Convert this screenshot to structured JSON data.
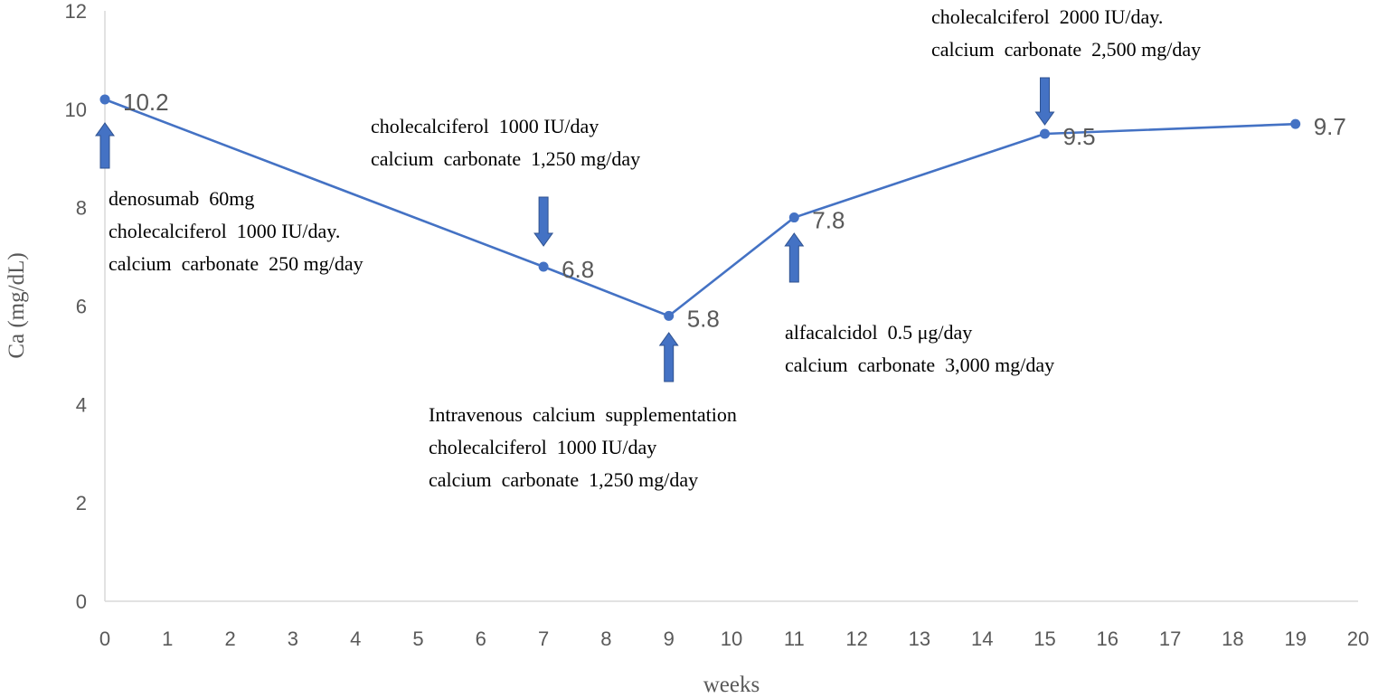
{
  "chart_data": {
    "type": "line",
    "title": "",
    "xlabel": "weeks",
    "ylabel": "Ca (mg/dL)",
    "xlim": [
      0,
      20
    ],
    "ylim": [
      0,
      12
    ],
    "x_ticks": [
      "0",
      "1",
      "2",
      "3",
      "4",
      "5",
      "6",
      "7",
      "8",
      "9",
      "10",
      "11",
      "12",
      "13",
      "14",
      "15",
      "16",
      "17",
      "18",
      "19",
      "20"
    ],
    "y_ticks": [
      "0",
      "2",
      "4",
      "6",
      "8",
      "10",
      "12"
    ],
    "grid": false,
    "legend": "none",
    "line_color": "#4472C4",
    "series": [
      {
        "x": [
          0,
          7,
          9,
          11,
          15,
          19
        ],
        "values": [
          10.2,
          6.8,
          5.8,
          7.8,
          9.5,
          9.7
        ],
        "data_labels": [
          "10.2",
          "6.8",
          "5.8",
          "7.8",
          "9.5",
          "9.7"
        ]
      }
    ],
    "annotations": [
      {
        "week": 0,
        "arrow": "up",
        "lines": [
          "denosumab  60mg",
          "cholecalciferol  1000 IU/day.",
          "calcium  carbonate  250 mg/day"
        ]
      },
      {
        "week": 7,
        "arrow": "down",
        "lines": [
          "cholecalciferol  1000 IU/day",
          "calcium  carbonate  1,250 mg/day"
        ]
      },
      {
        "week": 9,
        "arrow": "up",
        "lines": [
          "Intravenous  calcium  supplementation",
          "cholecalciferol  1000 IU/day",
          "calcium  carbonate  1,250 mg/day"
        ]
      },
      {
        "week": 11,
        "arrow": "up",
        "lines": [
          "alfacalcidol  0.5 μg/day",
          "calcium  carbonate  3,000 mg/day"
        ]
      },
      {
        "week": 15,
        "arrow": "down",
        "lines": [
          "cholecalciferol  2000 IU/day.",
          "calcium  carbonate  2,500 mg/day"
        ]
      }
    ]
  }
}
